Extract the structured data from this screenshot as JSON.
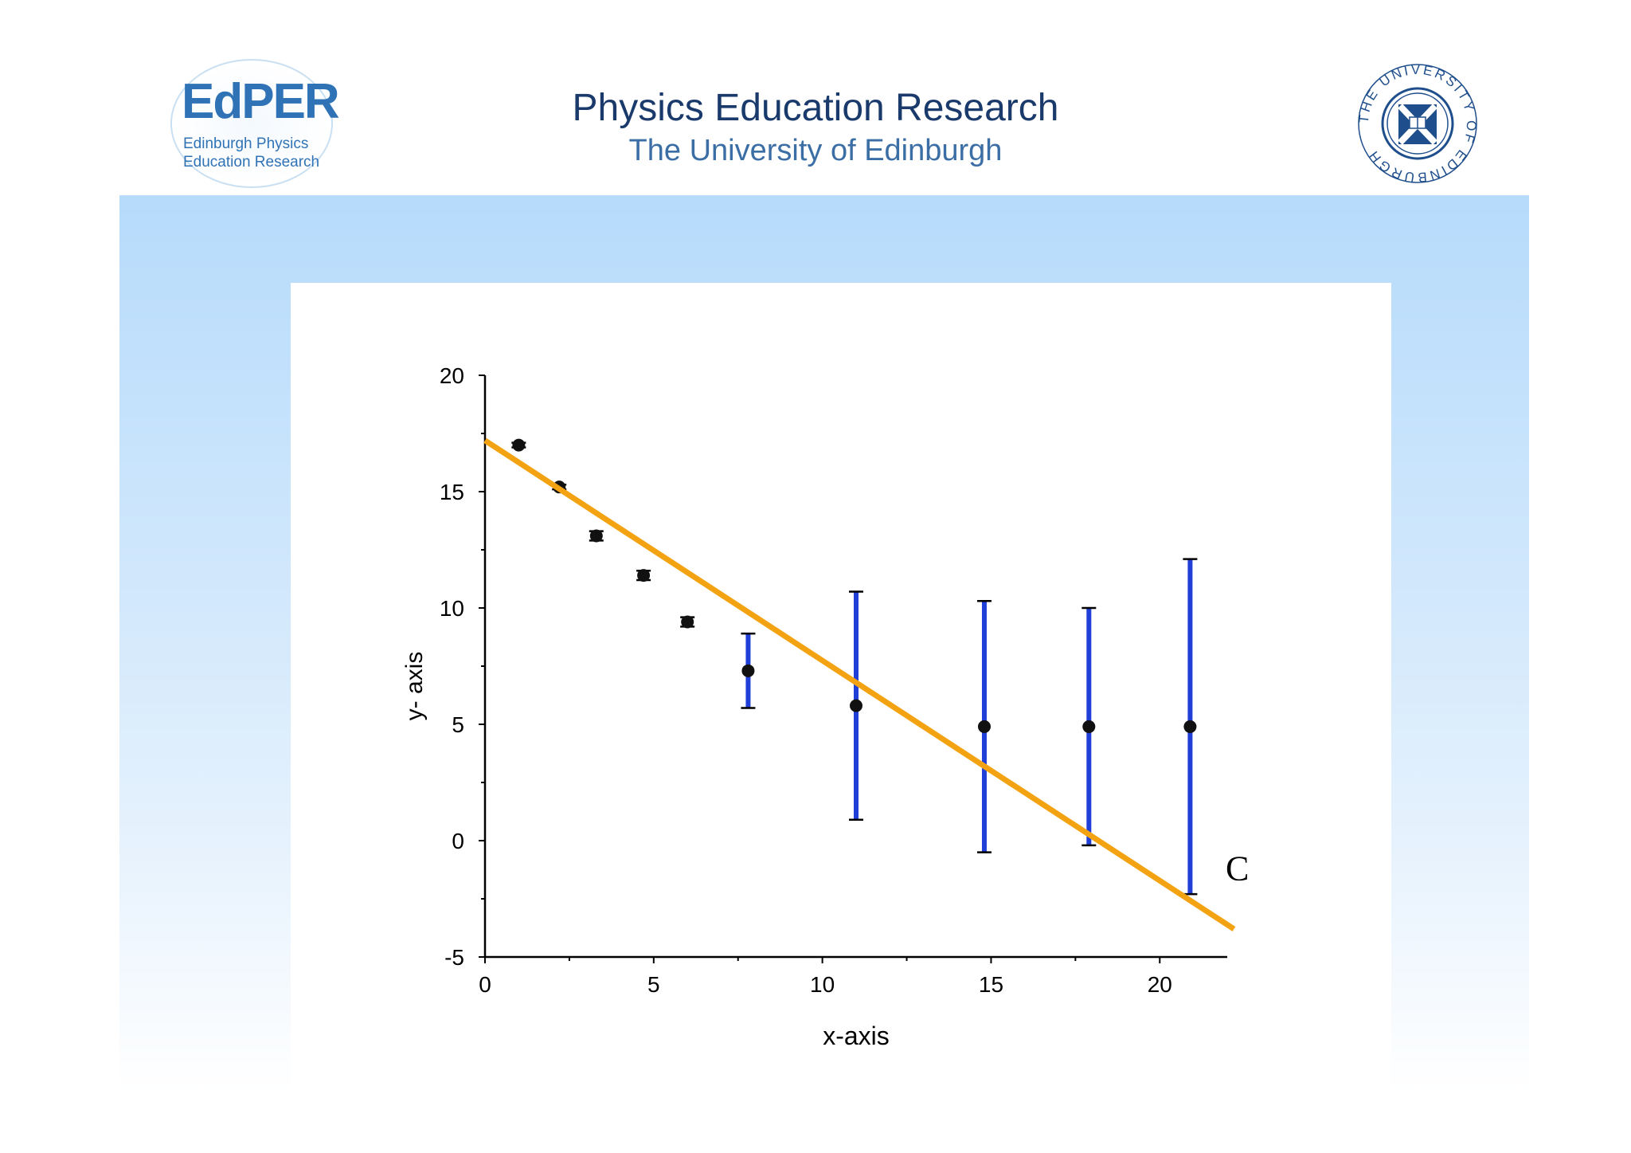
{
  "header": {
    "title": "Physics Education Research",
    "subtitle": "The University of Edinburgh"
  },
  "logos": {
    "edper": {
      "wordmark": "EdPER",
      "line1": "Edinburgh Physics",
      "line2": "Education Research",
      "color": "#2f73b6"
    },
    "university": {
      "text": "THE UNIVERSITY OF EDINBURGH",
      "icon": "university-crest-icon",
      "color": "#1f4e8c"
    }
  },
  "chart_data": {
    "type": "scatter",
    "title": "",
    "xlabel": "x-axis",
    "ylabel": "y- axis",
    "xlim": [
      0,
      22
    ],
    "ylim": [
      -5,
      20
    ],
    "xticks": [
      0,
      5,
      10,
      15,
      20
    ],
    "yticks": [
      -5,
      0,
      5,
      10,
      15,
      20
    ],
    "grid": false,
    "series": [
      {
        "points": [
          {
            "x": 1.0,
            "y": 17.0,
            "err": 0.1
          },
          {
            "x": 2.2,
            "y": 15.2,
            "err": 0.1
          },
          {
            "x": 3.3,
            "y": 13.1,
            "err": 0.2
          },
          {
            "x": 4.7,
            "y": 11.4,
            "err": 0.2
          },
          {
            "x": 6.0,
            "y": 9.4,
            "err": 0.2
          },
          {
            "x": 7.8,
            "y": 7.3,
            "err": 1.6
          },
          {
            "x": 11.0,
            "y": 5.8,
            "err": 4.9
          },
          {
            "x": 14.8,
            "y": 4.9,
            "err": 5.4
          },
          {
            "x": 17.9,
            "y": 4.9,
            "err": 5.1
          },
          {
            "x": 20.9,
            "y": 4.9,
            "err": 7.2
          }
        ],
        "marker_color": "#111111",
        "error_color": "#1f3fd8"
      }
    ],
    "fit_line": {
      "x": [
        0,
        22.2
      ],
      "y": [
        17.2,
        -3.8
      ],
      "color": "#f3a312"
    },
    "annotation": {
      "text": "C",
      "x": 22.3,
      "y": -1.7
    }
  }
}
